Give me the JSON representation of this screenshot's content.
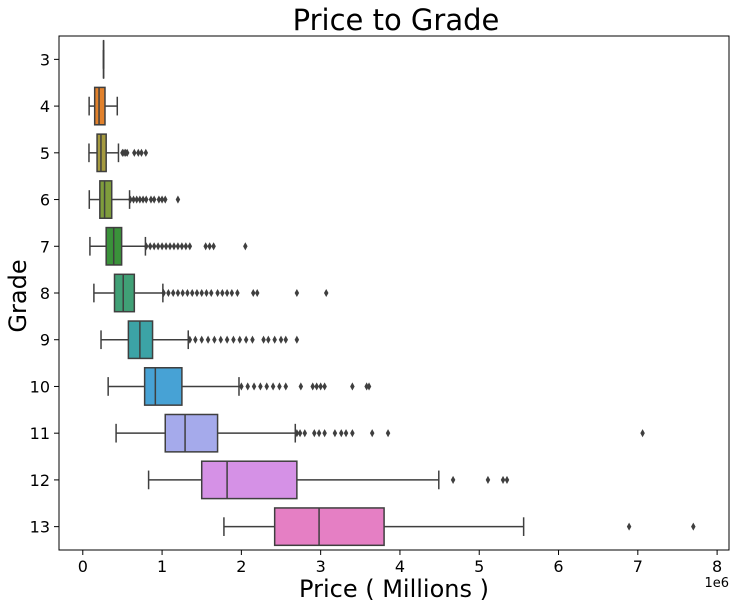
{
  "chart_data": {
    "type": "boxplot",
    "orientation": "horizontal",
    "title": "Price to Grade",
    "xlabel": "Price ( Millions )",
    "ylabel": "Grade",
    "x_offset_label": "1e6",
    "xlim": [
      -300000,
      8150000
    ],
    "x_ticks": [
      0,
      1000000,
      2000000,
      3000000,
      4000000,
      5000000,
      6000000,
      7000000,
      8000000
    ],
    "x_tick_labels": [
      "0",
      "1",
      "2",
      "3",
      "4",
      "5",
      "6",
      "7",
      "8"
    ],
    "categories": [
      "3",
      "4",
      "5",
      "6",
      "7",
      "8",
      "9",
      "10",
      "11",
      "12",
      "13"
    ],
    "grid": false,
    "boxes": [
      {
        "grade": "3",
        "color": "#3274a1",
        "whislo": 262000,
        "q1": 262000,
        "med": 262000,
        "q3": 262000,
        "whishi": 262000,
        "fliers": []
      },
      {
        "grade": "4",
        "color": "#e1812c",
        "whislo": 80000,
        "q1": 150000,
        "med": 205000,
        "q3": 280000,
        "whishi": 435000,
        "fliers": []
      },
      {
        "grade": "5",
        "color": "#a59a3f",
        "whislo": 78000,
        "q1": 180000,
        "med": 229000,
        "q3": 295000,
        "whishi": 450000,
        "fliers": [
          500000,
          520000,
          540000,
          560000,
          650000,
          700000,
          740000,
          795000
        ]
      },
      {
        "grade": "6",
        "color": "#7f9c3c",
        "whislo": 82000,
        "q1": 215000,
        "med": 275000,
        "q3": 365000,
        "whishi": 590000,
        "fliers": [
          600000,
          640000,
          680000,
          720000,
          760000,
          800000,
          860000,
          900000,
          960000,
          1000000,
          1040000,
          1200000
        ]
      },
      {
        "grade": "7",
        "color": "#3a923a",
        "whislo": 90000,
        "q1": 295000,
        "med": 390000,
        "q3": 490000,
        "whishi": 790000,
        "fliers": [
          800000,
          850000,
          900000,
          950000,
          1000000,
          1050000,
          1100000,
          1150000,
          1200000,
          1250000,
          1300000,
          1350000,
          1550000,
          1600000,
          1650000,
          2050000
        ]
      },
      {
        "grade": "8",
        "color": "#40a076",
        "whislo": 140000,
        "q1": 400000,
        "med": 510000,
        "q3": 650000,
        "whishi": 1010000,
        "fliers": [
          1020000,
          1080000,
          1140000,
          1200000,
          1260000,
          1320000,
          1380000,
          1440000,
          1500000,
          1560000,
          1620000,
          1700000,
          1760000,
          1820000,
          1880000,
          1950000,
          2150000,
          2200000,
          2700000,
          3070000
        ]
      },
      {
        "grade": "9",
        "color": "#3ca3a6",
        "whislo": 230000,
        "q1": 575000,
        "med": 720000,
        "q3": 880000,
        "whishi": 1330000,
        "fliers": [
          1350000,
          1420000,
          1500000,
          1580000,
          1660000,
          1740000,
          1820000,
          1900000,
          1980000,
          2060000,
          2140000,
          2280000,
          2340000,
          2420000,
          2500000,
          2560000,
          2700000
        ]
      },
      {
        "grade": "10",
        "color": "#47a2d5",
        "whislo": 320000,
        "q1": 780000,
        "med": 915000,
        "q3": 1250000,
        "whishi": 1970000,
        "fliers": [
          2000000,
          2080000,
          2160000,
          2240000,
          2320000,
          2400000,
          2480000,
          2560000,
          2750000,
          2900000,
          2950000,
          3000000,
          3050000,
          3400000,
          3580000,
          3610000
        ]
      },
      {
        "grade": "11",
        "color": "#a5aaeb",
        "whislo": 420000,
        "q1": 1040000,
        "med": 1290000,
        "q3": 1700000,
        "whishi": 2680000,
        "fliers": [
          2700000,
          2740000,
          2800000,
          2920000,
          2980000,
          3050000,
          3180000,
          3260000,
          3320000,
          3400000,
          3650000,
          3850000,
          7060000
        ]
      },
      {
        "grade": "12",
        "color": "#d591e6",
        "whislo": 830000,
        "q1": 1500000,
        "med": 1820000,
        "q3": 2700000,
        "whishi": 4490000,
        "fliers": [
          4670000,
          5110000,
          5300000,
          5350000
        ]
      },
      {
        "grade": "13",
        "color": "#e57fc4",
        "whislo": 1780000,
        "q1": 2420000,
        "med": 2980000,
        "q3": 3800000,
        "whishi": 5560000,
        "fliers": [
          6890000,
          7700000
        ]
      }
    ]
  }
}
